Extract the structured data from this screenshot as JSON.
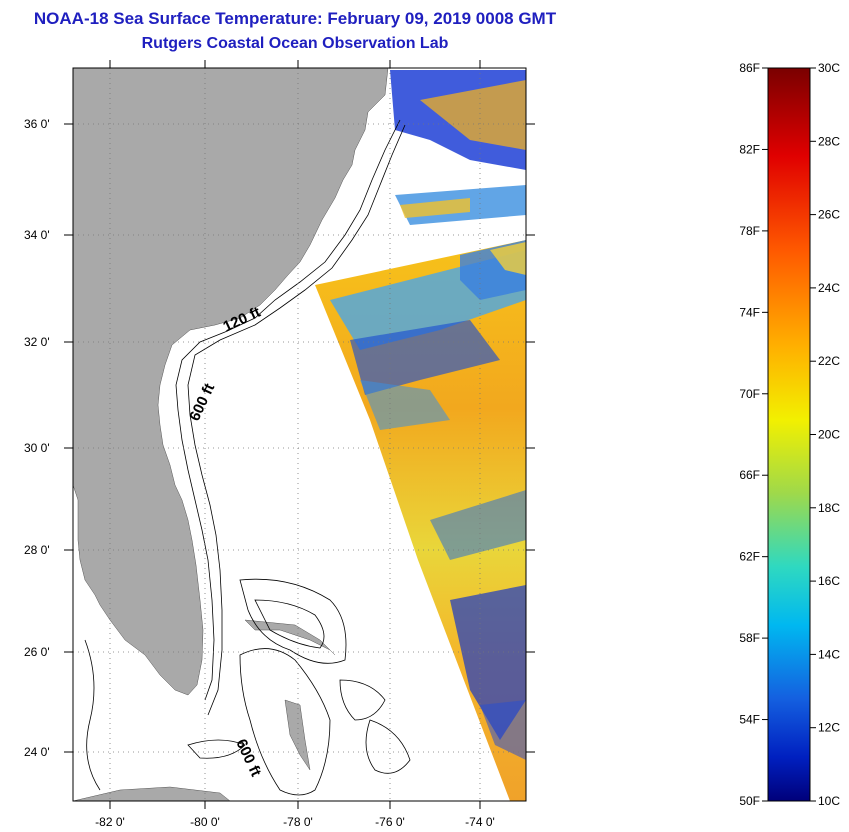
{
  "title": {
    "line1": "NOAA-18 Sea Surface Temperature:  February 09, 2019 0008 GMT",
    "line2": "Rutgers Coastal Ocean Observation Lab"
  },
  "axes": {
    "lat_labels": [
      "36 0'",
      "34 0'",
      "32 0'",
      "30 0'",
      "28 0'",
      "26 0'",
      "24 0'"
    ],
    "lon_labels": [
      "-82 0'",
      "-80 0'",
      "-78 0'",
      "-76 0'",
      "-74 0'"
    ]
  },
  "depth_labels": [
    "120 ft",
    "600 ft",
    "600 ft"
  ],
  "colorbar": {
    "fahrenheit": [
      "86F",
      "82F",
      "78F",
      "74F",
      "70F",
      "66F",
      "62F",
      "58F",
      "54F",
      "50F"
    ],
    "celsius": [
      "30C",
      "28C",
      "26C",
      "24C",
      "22C",
      "20C",
      "18C",
      "16C",
      "14C",
      "12C",
      "10C"
    ],
    "range_f": [
      50,
      86
    ],
    "range_c": [
      10,
      30
    ]
  },
  "colors": {
    "title": "#1f1fbf",
    "land": "#a9a9a9",
    "ocean_no_data": "#ffffff"
  }
}
